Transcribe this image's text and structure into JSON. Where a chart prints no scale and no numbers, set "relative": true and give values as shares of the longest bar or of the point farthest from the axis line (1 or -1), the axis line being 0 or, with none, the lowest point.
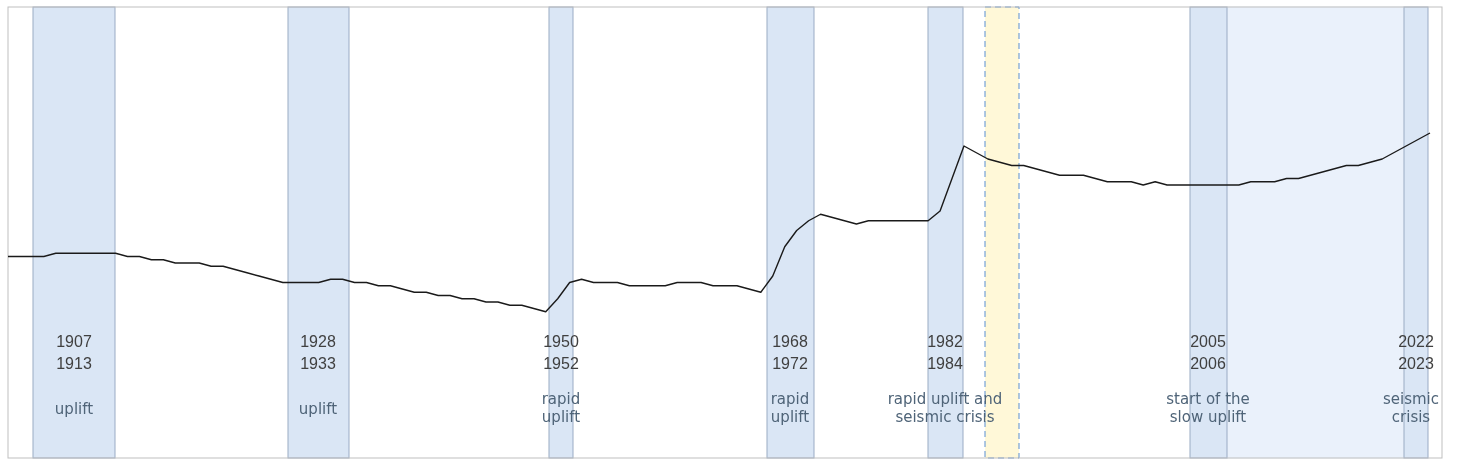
{
  "chart_data": {
    "type": "line",
    "relative": true,
    "annotations": [
      "1907\n1913",
      "uplift",
      "1928\n1933",
      "uplift",
      "1950\n1952",
      "rapid\nuplift",
      "1968\n1972",
      "rapid\nuplift",
      "1982\n1984",
      "rapid uplift and\nseismic crisis",
      "2005\n2006",
      "start of the\nslow uplift",
      "2022\n2023",
      "seismic\ncrisis"
    ],
    "categories": [
      null,
      null,
      null,
      null,
      null,
      null,
      null,
      null,
      null,
      null,
      null,
      null,
      null,
      null,
      null,
      null,
      null,
      null,
      null,
      null,
      null,
      null,
      null,
      null,
      null,
      null,
      null,
      null,
      null,
      null,
      null,
      null,
      null,
      null,
      null,
      null,
      null,
      null,
      null,
      null,
      null,
      null,
      null,
      null,
      null,
      null,
      null,
      null,
      null,
      null,
      null,
      null,
      null,
      null,
      null,
      null,
      null,
      null,
      null,
      null,
      null,
      null,
      null,
      null,
      null,
      null,
      null,
      null,
      null,
      null,
      null,
      null,
      null,
      null,
      null,
      null,
      null,
      null,
      null,
      null,
      null,
      null,
      null,
      null,
      null,
      null,
      null,
      null,
      null,
      null,
      null,
      null,
      null,
      null,
      null,
      null,
      null,
      null,
      null,
      null,
      null,
      null,
      null,
      null,
      null,
      null,
      null,
      null,
      null,
      null,
      null,
      null,
      null,
      null,
      null,
      null,
      null,
      null,
      null,
      null
    ],
    "series": [
      {
        "color": "#1a1a1a",
        "values": [
          0.62,
          0.62,
          0.62,
          0.62,
          0.63,
          0.63,
          0.63,
          0.63,
          0.63,
          0.63,
          0.62,
          0.62,
          0.61,
          0.61,
          0.6,
          0.6,
          0.6,
          0.59,
          0.59,
          0.58,
          0.57,
          0.56,
          0.55,
          0.54,
          0.54,
          0.54,
          0.54,
          0.55,
          0.55,
          0.54,
          0.54,
          0.53,
          0.53,
          0.52,
          0.51,
          0.51,
          0.5,
          0.5,
          0.49,
          0.49,
          0.48,
          0.48,
          0.47,
          0.47,
          0.46,
          0.45,
          0.49,
          0.54,
          0.55,
          0.54,
          0.54,
          0.54,
          0.53,
          0.53,
          0.53,
          0.53,
          0.54,
          0.54,
          0.54,
          0.53,
          0.53,
          0.53,
          0.52,
          0.51,
          0.56,
          0.65,
          0.7,
          0.73,
          0.75,
          0.74,
          0.73,
          0.72,
          0.73,
          0.73,
          0.73,
          0.73,
          0.73,
          0.73,
          0.76,
          0.86,
          0.96,
          0.94,
          0.92,
          0.91,
          0.9,
          0.9,
          0.89,
          0.88,
          0.87,
          0.87,
          0.87,
          0.86,
          0.85,
          0.85,
          0.85,
          0.84,
          0.85,
          0.84,
          0.84,
          0.84,
          0.84,
          0.84,
          0.84,
          0.84,
          0.85,
          0.85,
          0.85,
          0.86,
          0.86,
          0.87,
          0.88,
          0.89,
          0.9,
          0.9,
          0.91,
          0.92,
          0.94,
          0.96,
          0.98,
          1
        ]
      }
    ]
  }
}
